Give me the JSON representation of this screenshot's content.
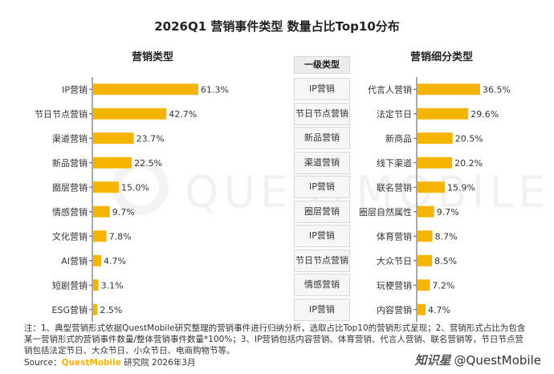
{
  "title": "2026Q1 营销事件类型 数量占比Top10分布",
  "watermark": "QUESTMOBILE",
  "chart_data": [
    {
      "type": "bar",
      "orientation": "horizontal",
      "title": "营销类型",
      "categories": [
        "IP营销",
        "节日节点营销",
        "渠道营销",
        "新品营销",
        "圈层营销",
        "情感营销",
        "文化营销",
        "AI营销",
        "短剧营销",
        "ESG营销"
      ],
      "values": [
        61.3,
        42.7,
        23.7,
        22.5,
        15.0,
        9.7,
        7.8,
        4.7,
        3.1,
        2.5
      ],
      "value_labels": [
        "61.3%",
        "42.7%",
        "23.7%",
        "22.5%",
        "15.0%",
        "9.7%",
        "7.8%",
        "4.7%",
        "3.1%",
        "2.5%"
      ],
      "unit": "%",
      "grid": false,
      "xlim": [
        0,
        61.3
      ]
    },
    {
      "type": "bar",
      "orientation": "horizontal",
      "title": "营销细分类型",
      "categories": [
        "代言人营销",
        "法定节日",
        "新商品",
        "线下渠道",
        "联名营销",
        "圈层自然属性",
        "体育营销",
        "大众节日",
        "玩梗营销",
        "内容营销"
      ],
      "values": [
        36.5,
        29.6,
        20.5,
        20.2,
        15.9,
        9.7,
        8.7,
        8.5,
        7.2,
        4.7
      ],
      "value_labels": [
        "36.5%",
        "29.6%",
        "20.5%",
        "20.2%",
        "15.9%",
        "9.7%",
        "8.7%",
        "8.5%",
        "7.2%",
        "4.7%"
      ],
      "unit": "%",
      "grid": false,
      "xlim": [
        0,
        36.5
      ]
    }
  ],
  "level1": {
    "header": "一级类型",
    "items": [
      "IP营销",
      "节日节点营销",
      "新品营销",
      "渠道营销",
      "IP营销",
      "圈层营销",
      "IP营销",
      "节日节点营销",
      "情感营销",
      "IP营销"
    ]
  },
  "note": "注：1、典型营销形式依据QuestMobile研究整理的营销事件进行归纳分析，选取占比Top10的营销形式呈现；2、营销形式占比为包含某一营销形式的营销事件数量/整体营销事件数量*100%；3、IP营销包括内容营销、体育营销、代言人营销、联名营销等，节日节点营销包括法定节日、大众节日、小众节日、电商购物节等。",
  "source_label": "Source：",
  "source_brand": "QuestMobile",
  "source_rest": " 研究院 2026年3月",
  "footer_logo": "知识星",
  "footer_handle": "@QuestMobile",
  "colors": {
    "bar": "#f5b400",
    "axis": "#555555",
    "text": "#333333"
  }
}
